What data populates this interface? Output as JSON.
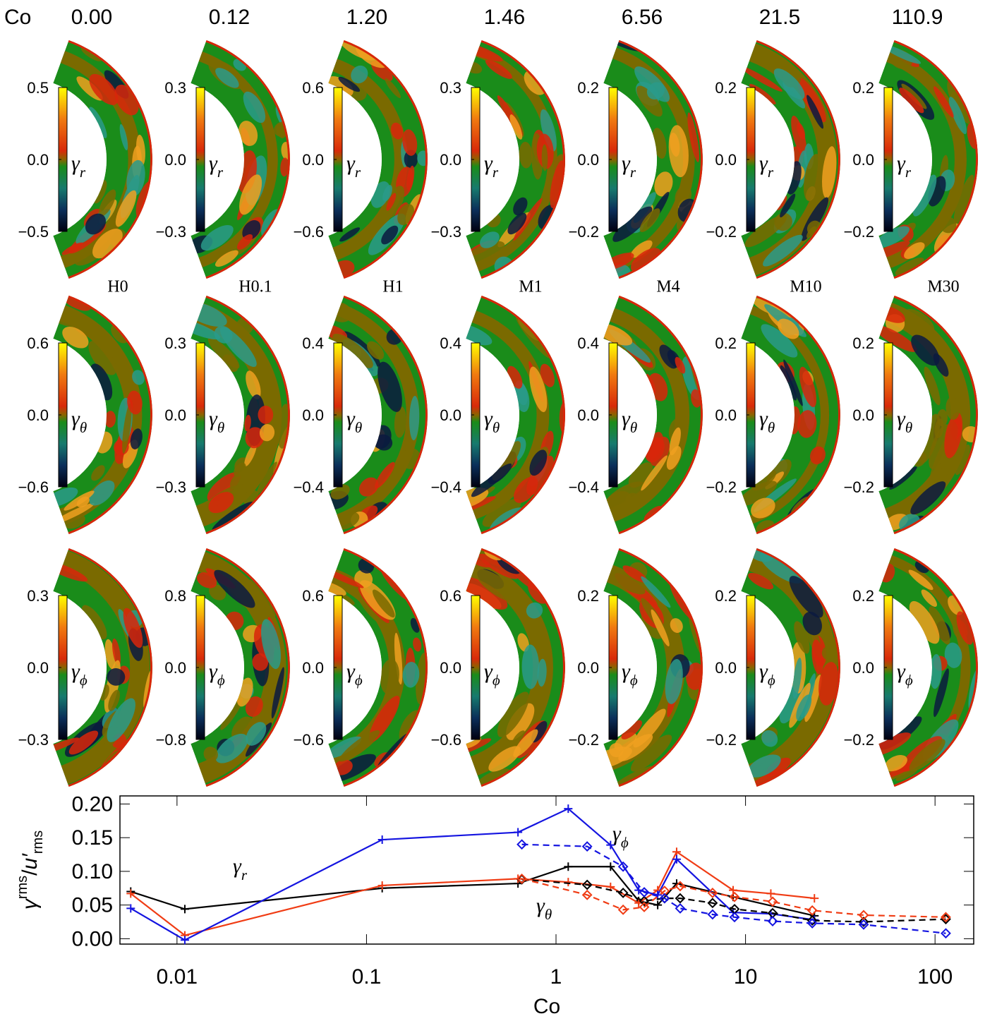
{
  "header": {
    "co_label": "Co",
    "co_values": [
      "0.00",
      "0.12",
      "1.20",
      "1.46",
      "6.56",
      "21.5",
      "110.9"
    ],
    "runs": [
      "H0",
      "H0.1",
      "H1",
      "M1",
      "M4",
      "M10",
      "M30"
    ]
  },
  "panels": [
    {
      "symbol": "γ",
      "sub": "r",
      "colorbars": [
        {
          "lim": [
            -0.5,
            0.5
          ],
          "ticks": [
            {
              "value": -0.5,
              "label": "−0.5"
            },
            {
              "value": 0,
              "label": "0.0"
            },
            0.5
          ]
        },
        {
          "lim": [
            -0.3,
            0.3
          ],
          "ticks": [
            {
              "value": -0.3,
              "label": "−0.3"
            },
            {
              "value": 0,
              "label": "0.0"
            },
            0.3
          ]
        },
        {
          "lim": [
            -0.6,
            0.6
          ],
          "ticks": [
            {
              "value": -0.6,
              "label": "−0.6"
            },
            {
              "value": 0,
              "label": "0.0"
            },
            0.6
          ]
        },
        {
          "lim": [
            -0.3,
            0.3
          ],
          "ticks": [
            {
              "value": -0.3,
              "label": "−0.3"
            },
            {
              "value": 0,
              "label": "0.0"
            },
            0.3
          ]
        },
        {
          "lim": [
            -0.2,
            0.2
          ],
          "ticks": [
            {
              "value": -0.2,
              "label": "−0.2"
            },
            {
              "value": 0,
              "label": "0.0"
            },
            0.2
          ]
        },
        {
          "lim": [
            -0.2,
            0.2
          ],
          "ticks": [
            {
              "value": -0.2,
              "label": "−0.2"
            },
            {
              "value": 0,
              "label": "0.0"
            },
            0.2
          ]
        },
        {
          "lim": [
            -0.2,
            0.2
          ],
          "ticks": [
            {
              "value": -0.2,
              "label": "−0.2"
            },
            {
              "value": 0,
              "label": "0.0"
            },
            0.2
          ]
        }
      ]
    },
    {
      "symbol": "γ",
      "sub": "θ",
      "colorbars": [
        {
          "lim": [
            -0.6,
            0.6
          ],
          "ticks": [
            {
              "value": -0.6,
              "label": "−0.6"
            },
            {
              "value": 0,
              "label": "0.0"
            },
            0.6
          ]
        },
        {
          "lim": [
            -0.3,
            0.3
          ],
          "ticks": [
            {
              "value": -0.3,
              "label": "−0.3"
            },
            {
              "value": 0,
              "label": "0.0"
            },
            0.3
          ]
        },
        {
          "lim": [
            -0.4,
            0.4
          ],
          "ticks": [
            {
              "value": -0.4,
              "label": "−0.4"
            },
            {
              "value": 0,
              "label": "0.0"
            },
            0.4
          ]
        },
        {
          "lim": [
            -0.4,
            0.4
          ],
          "ticks": [
            {
              "value": -0.4,
              "label": "−0.4"
            },
            {
              "value": 0,
              "label": "0.0"
            },
            0.4
          ]
        },
        {
          "lim": [
            -0.4,
            0.4
          ],
          "ticks": [
            {
              "value": -0.4,
              "label": "−0.4"
            },
            {
              "value": 0,
              "label": "0.0"
            },
            0.4
          ]
        },
        {
          "lim": [
            -0.2,
            0.2
          ],
          "ticks": [
            {
              "value": -0.2,
              "label": "−0.2"
            },
            {
              "value": 0,
              "label": "0.0"
            },
            0.2
          ]
        },
        {
          "lim": [
            -0.2,
            0.2
          ],
          "ticks": [
            {
              "value": -0.2,
              "label": "−0.2"
            },
            {
              "value": 0,
              "label": "0.0"
            },
            0.2
          ]
        }
      ]
    },
    {
      "symbol": "γ",
      "sub": "ϕ",
      "colorbars": [
        {
          "lim": [
            -0.3,
            0.3
          ],
          "ticks": [
            {
              "value": -0.3,
              "label": "−0.3"
            },
            {
              "value": 0,
              "label": "0.0"
            },
            0.3
          ]
        },
        {
          "lim": [
            -0.8,
            0.8
          ],
          "ticks": [
            {
              "value": -0.8,
              "label": "−0.8"
            },
            {
              "value": 0,
              "label": "0.0"
            },
            0.8
          ]
        },
        {
          "lim": [
            -0.6,
            0.6
          ],
          "ticks": [
            {
              "value": -0.6,
              "label": "−0.6"
            },
            {
              "value": 0,
              "label": "0.0"
            },
            0.6
          ]
        },
        {
          "lim": [
            -0.6,
            0.6
          ],
          "ticks": [
            {
              "value": -0.6,
              "label": "−0.6"
            },
            {
              "value": 0,
              "label": "0.0"
            },
            0.6
          ]
        },
        {
          "lim": [
            -0.2,
            0.2
          ],
          "ticks": [
            {
              "value": -0.2,
              "label": "−0.2"
            },
            {
              "value": 0,
              "label": "0.0"
            },
            0.2
          ]
        },
        {
          "lim": [
            -0.2,
            0.2
          ],
          "ticks": [
            {
              "value": -0.2,
              "label": "−0.2"
            },
            {
              "value": 0,
              "label": "0.0"
            },
            0.2
          ]
        },
        {
          "lim": [
            -0.2,
            0.2
          ],
          "ticks": [
            {
              "value": -0.2,
              "label": "−0.2"
            },
            {
              "value": 0,
              "label": "0.0"
            },
            0.2
          ]
        }
      ]
    }
  ],
  "chart_data": {
    "type": "line",
    "xlabel": "Co",
    "ylabel": [
      "γ",
      "rms",
      "/",
      "u′",
      "rms"
    ],
    "log_x": true,
    "xlim": [
      0.005,
      160
    ],
    "ylim": [
      -0.008,
      0.212
    ],
    "xticks": [
      0.01,
      0.1,
      1,
      10,
      100
    ],
    "yticks": [
      {
        "value": 0,
        "label": "0.00"
      },
      0.05,
      {
        "value": 0.1,
        "label": "0.10"
      },
      0.15,
      {
        "value": 0.2,
        "label": "0.20"
      }
    ],
    "annotations": [
      {
        "text": "γ",
        "sub": "r",
        "color": "#000000"
      },
      {
        "text": "γ",
        "sub": "θ",
        "color": "#f03c14"
      },
      {
        "text": "γ",
        "sub": "ϕ",
        "color": "#1414e0"
      }
    ],
    "series": [
      {
        "color": "#000000",
        "dashed": false,
        "marker": "plus",
        "x": [
          0.0057,
          0.011,
          0.121,
          0.63,
          1.16,
          1.94,
          2.73,
          3.44,
          4.33,
          8.6,
          23.1
        ],
        "values": [
          0.07,
          0.044,
          0.075,
          0.082,
          0.107,
          0.107,
          0.056,
          0.05,
          0.082,
          0.062,
          0.034
        ]
      },
      {
        "color": "#f03c14",
        "dashed": false,
        "marker": "plus",
        "x": [
          0.0057,
          0.011,
          0.121,
          0.63,
          1.16,
          1.94,
          2.73,
          3.44,
          4.33,
          8.6,
          13.6,
          23.1
        ],
        "values": [
          0.067,
          0.005,
          0.079,
          0.089,
          0.084,
          0.077,
          0.053,
          0.072,
          0.129,
          0.072,
          0.067,
          0.06
        ]
      },
      {
        "color": "#1414e0",
        "dashed": false,
        "marker": "plus",
        "x": [
          0.0057,
          0.011,
          0.121,
          0.63,
          1.16,
          1.94,
          2.73,
          3.44,
          4.33,
          8.6,
          13.6,
          23.1
        ],
        "values": [
          0.045,
          -0.002,
          0.147,
          0.158,
          0.193,
          0.139,
          0.072,
          0.065,
          0.118,
          0.039,
          0.037,
          0.028
        ]
      },
      {
        "color": "#000000",
        "dashed": true,
        "marker": "diamond",
        "x": [
          0.66,
          1.46,
          2.26,
          2.92,
          3.74,
          4.52,
          6.7,
          8.75,
          13.9,
          22.5,
          42,
          114
        ],
        "values": [
          0.088,
          0.08,
          0.068,
          0.056,
          0.06,
          0.06,
          0.053,
          0.044,
          0.038,
          0.027,
          0.025,
          0.029
        ]
      },
      {
        "color": "#f03c14",
        "dashed": true,
        "marker": "diamond",
        "x": [
          0.66,
          1.46,
          2.26,
          2.92,
          3.74,
          4.52,
          6.7,
          8.75,
          13.9,
          22.5,
          42,
          114
        ],
        "values": [
          0.089,
          0.065,
          0.043,
          0.047,
          0.071,
          0.078,
          0.068,
          0.062,
          0.055,
          0.042,
          0.035,
          0.032
        ]
      },
      {
        "color": "#1414e0",
        "dashed": true,
        "marker": "diamond",
        "x": [
          0.66,
          1.46,
          2.26,
          2.92,
          3.74,
          4.52,
          6.7,
          8.75,
          13.9,
          22.5,
          42,
          114
        ],
        "values": [
          0.14,
          0.137,
          0.107,
          0.069,
          0.06,
          0.045,
          0.036,
          0.032,
          0.026,
          0.023,
          0.021,
          0.008
        ]
      }
    ]
  }
}
